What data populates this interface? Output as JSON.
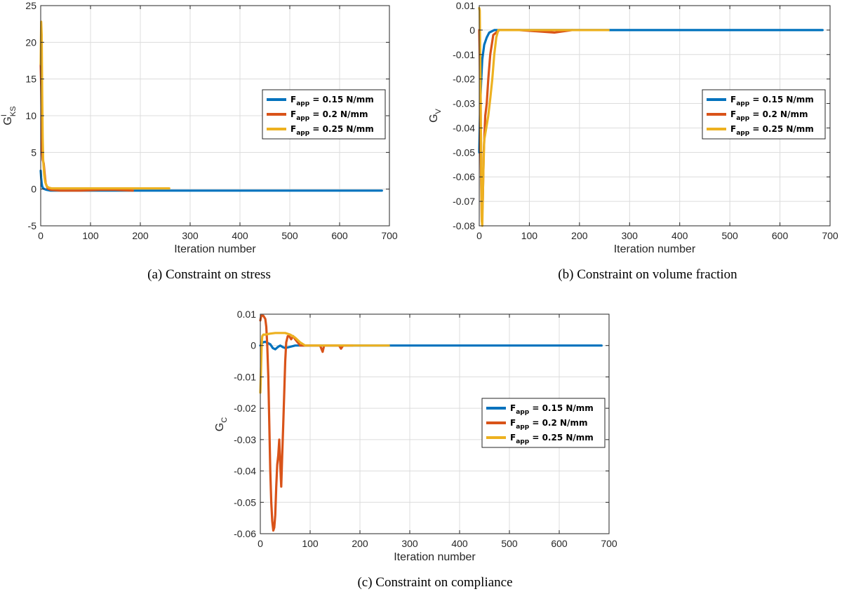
{
  "series_colors": [
    "#0072bd",
    "#d95319",
    "#edb120"
  ],
  "chart_data": [
    {
      "type": "line",
      "caption": "(a) Constraint on stress",
      "xlabel": "Iteration number",
      "ylabel": {
        "base": "G",
        "sup": "I",
        "sub": "KS"
      },
      "xlim": [
        0,
        700
      ],
      "ylim": [
        -5,
        25
      ],
      "xticks": [
        0,
        100,
        200,
        300,
        400,
        500,
        600,
        700
      ],
      "yticks": [
        -5,
        0,
        5,
        10,
        15,
        20,
        25
      ],
      "ytick_labels": [
        "-5",
        "0",
        "5",
        "10",
        "15",
        "20",
        "25"
      ],
      "grid": true,
      "legend_placement": "center-right",
      "series": [
        {
          "name": {
            "base": "F",
            "sub": "app",
            "rest": " = 0.15 N/mm"
          },
          "color": "#0072bd",
          "x": [
            0,
            1,
            2,
            3,
            5,
            8,
            12,
            20,
            40,
            100,
            200,
            300,
            400,
            500,
            600,
            685
          ],
          "y": [
            2.5,
            1.5,
            0.8,
            0.4,
            0.1,
            0.0,
            -0.1,
            -0.2,
            -0.2,
            -0.2,
            -0.2,
            -0.2,
            -0.2,
            -0.2,
            -0.2,
            -0.2
          ]
        },
        {
          "name": {
            "base": "F",
            "sub": "app",
            "rest": " = 0.2 N/mm"
          },
          "color": "#d95319",
          "x": [
            0,
            1,
            2,
            3,
            4,
            6,
            8,
            10,
            14,
            20,
            40,
            80,
            120,
            150,
            185
          ],
          "y": [
            17,
            14,
            9,
            5,
            4,
            3.5,
            2,
            0.8,
            0.1,
            -0.1,
            -0.2,
            -0.2,
            -0.1,
            -0.1,
            -0.2
          ]
        },
        {
          "name": {
            "base": "F",
            "sub": "app",
            "rest": " = 0.25 N/mm"
          },
          "color": "#edb120",
          "x": [
            0,
            1,
            2,
            3,
            4,
            5,
            7,
            9,
            12,
            16,
            22,
            40,
            80,
            120,
            160,
            200,
            258
          ],
          "y": [
            17,
            22.8,
            21,
            13,
            7,
            4,
            2,
            1,
            0.4,
            0.2,
            0.1,
            0.1,
            0.1,
            0.1,
            0.1,
            0.1,
            0.1
          ]
        }
      ]
    },
    {
      "type": "line",
      "caption": "(b) Constraint on volume fraction",
      "xlabel": "Iteration number",
      "ylabel": {
        "base": "G",
        "sup": "",
        "sub": "V"
      },
      "xlim": [
        0,
        700
      ],
      "ylim": [
        -0.08,
        0.01
      ],
      "xticks": [
        0,
        100,
        200,
        300,
        400,
        500,
        600,
        700
      ],
      "yticks": [
        -0.08,
        -0.07,
        -0.06,
        -0.05,
        -0.04,
        -0.03,
        -0.02,
        -0.01,
        0,
        0.01
      ],
      "ytick_labels": [
        "-0.08",
        "-0.07",
        "-0.06",
        "-0.05",
        "-0.04",
        "-0.03",
        "-0.02",
        "-0.01",
        "0",
        "0.01"
      ],
      "grid": true,
      "legend_placement": "center-right",
      "series": [
        {
          "name": {
            "base": "F",
            "sub": "app",
            "rest": " = 0.15 N/mm"
          },
          "color": "#0072bd",
          "x": [
            0,
            1,
            2,
            4,
            6,
            10,
            15,
            20,
            30,
            60,
            100,
            260,
            685
          ],
          "y": [
            -0.05,
            -0.04,
            -0.03,
            -0.02,
            -0.012,
            -0.006,
            -0.003,
            -0.001,
            0,
            0,
            0,
            0,
            0
          ]
        },
        {
          "name": {
            "base": "F",
            "sub": "app",
            "rest": " = 0.2 N/mm"
          },
          "color": "#d95319",
          "x": [
            0,
            1,
            2,
            3,
            4,
            5,
            7,
            9,
            12,
            15,
            18,
            22,
            28,
            40,
            80,
            150,
            185
          ],
          "y": [
            0,
            -0.01,
            -0.03,
            -0.05,
            -0.065,
            -0.078,
            -0.07,
            -0.05,
            -0.035,
            -0.03,
            -0.02,
            -0.01,
            -0.002,
            0,
            0,
            -0.001,
            0
          ]
        },
        {
          "name": {
            "base": "F",
            "sub": "app",
            "rest": " = 0.25 N/mm"
          },
          "color": "#edb120",
          "x": [
            0,
            1,
            2,
            3,
            4,
            5,
            6,
            7,
            8,
            10,
            14,
            18,
            22,
            26,
            30,
            34,
            38,
            50,
            100,
            150,
            200,
            258
          ],
          "y": [
            0.009,
            0.008,
            -0.01,
            -0.03,
            -0.06,
            -0.078,
            -0.08,
            -0.07,
            -0.06,
            -0.045,
            -0.04,
            -0.035,
            -0.028,
            -0.02,
            -0.01,
            -0.003,
            0,
            0,
            0,
            0,
            0,
            0
          ]
        }
      ]
    },
    {
      "type": "line",
      "caption": "(c) Constraint on compliance",
      "xlabel": "Iteration number",
      "ylabel": {
        "base": "G",
        "sup": "",
        "sub": "C"
      },
      "xlim": [
        0,
        700
      ],
      "ylim": [
        -0.06,
        0.01
      ],
      "xticks": [
        0,
        100,
        200,
        300,
        400,
        500,
        600,
        700
      ],
      "yticks": [
        -0.06,
        -0.05,
        -0.04,
        -0.03,
        -0.02,
        -0.01,
        0,
        0.01
      ],
      "ytick_labels": [
        "-0.06",
        "-0.05",
        "-0.04",
        "-0.03",
        "-0.02",
        "-0.01",
        "0",
        "0.01"
      ],
      "grid": true,
      "legend_placement": "center-right",
      "series": [
        {
          "name": {
            "base": "F",
            "sub": "app",
            "rest": " = 0.15 N/mm"
          },
          "color": "#0072bd",
          "x": [
            0,
            5,
            10,
            15,
            20,
            25,
            30,
            35,
            40,
            45,
            50,
            60,
            70,
            80,
            100,
            150,
            260,
            685
          ],
          "y": [
            0,
            0.001,
            0.0012,
            0.0008,
            0.0004,
            -0.0008,
            -0.0012,
            -0.0005,
            0,
            -0.0005,
            -0.0008,
            -0.0004,
            0,
            0,
            0,
            0,
            0,
            0
          ]
        },
        {
          "name": {
            "base": "F",
            "sub": "app",
            "rest": " = 0.2 N/mm"
          },
          "color": "#d95319",
          "x": [
            0,
            2,
            4,
            6,
            8,
            10,
            12,
            14,
            16,
            18,
            20,
            22,
            24,
            26,
            28,
            30,
            32,
            34,
            36,
            38,
            40,
            42,
            44,
            46,
            48,
            50,
            52,
            55,
            58,
            62,
            66,
            70,
            75,
            80,
            90,
            100,
            110,
            120,
            125,
            128,
            131,
            140,
            150,
            158,
            162,
            166,
            175,
            185
          ],
          "y": [
            0.008,
            0.0095,
            0.0095,
            0.0095,
            0.009,
            0.0085,
            0.006,
            0.0,
            -0.01,
            -0.025,
            -0.04,
            -0.05,
            -0.056,
            -0.059,
            -0.058,
            -0.054,
            -0.045,
            -0.038,
            -0.035,
            -0.03,
            -0.038,
            -0.045,
            -0.035,
            -0.025,
            -0.015,
            -0.005,
            0.001,
            0.003,
            0.003,
            0.002,
            0.003,
            0.002,
            0.001,
            0.0,
            0.0,
            0.0,
            0.0,
            0.0,
            -0.002,
            0.0,
            0.0,
            0.0,
            0.0,
            0.0,
            -0.001,
            0.0,
            0.0,
            0.0
          ]
        },
        {
          "name": {
            "base": "F",
            "sub": "app",
            "rest": " = 0.25 N/mm"
          },
          "color": "#edb120",
          "x": [
            0,
            1,
            2,
            3,
            4,
            6,
            10,
            20,
            30,
            40,
            50,
            60,
            70,
            80,
            90,
            100,
            150,
            200,
            258
          ],
          "y": [
            -0.015,
            -0.01,
            -0.004,
            0.001,
            0.003,
            0.0035,
            0.0035,
            0.0038,
            0.004,
            0.004,
            0.004,
            0.0035,
            0.0025,
            0.001,
            0.0,
            0.0,
            0.0,
            0.0,
            0.0
          ]
        }
      ]
    }
  ]
}
